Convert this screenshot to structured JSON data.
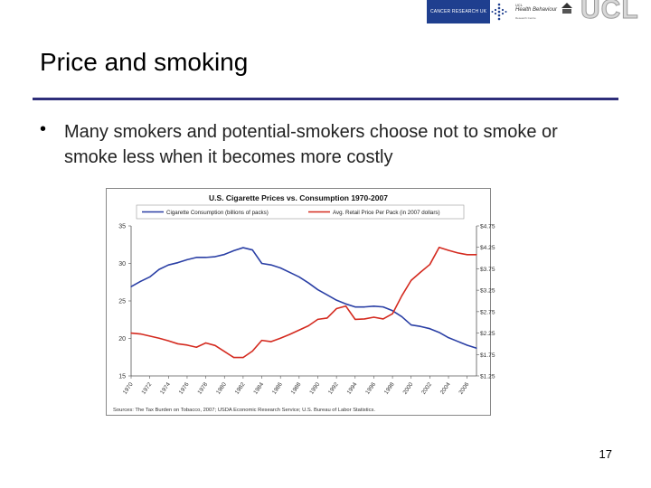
{
  "header": {
    "logo_cancer_research": "CANCER RESEARCH UK",
    "logo_ac_line1": "UCL",
    "logo_ac_line2": "Health Behaviour",
    "logo_ac_line3": "Research Centre",
    "logo_ucl": "UCL"
  },
  "slide": {
    "title": "Price and smoking",
    "bullet_marker": "•",
    "bullet_text": "Many smokers and potential-smokers choose not to smoke or smoke less when it becomes more costly",
    "page_number": "17"
  },
  "colors": {
    "consumption": "#2a3fa5",
    "price": "#d42a1f",
    "rule": "#2e2e7a",
    "chart_border": "#888888"
  },
  "chart_data": {
    "type": "line",
    "title": "U.S. Cigarette Prices vs. Consumption 1970-2007",
    "source": "Sources: The Tax Burden on Tobacco, 2007; USDA Economic Research Service; U.S. Bureau of Labor Statistics.",
    "x": [
      1970,
      1971,
      1972,
      1973,
      1974,
      1975,
      1976,
      1977,
      1978,
      1979,
      1980,
      1981,
      1982,
      1983,
      1984,
      1985,
      1986,
      1987,
      1988,
      1989,
      1990,
      1991,
      1992,
      1993,
      1994,
      1995,
      1996,
      1997,
      1998,
      1999,
      2000,
      2001,
      2002,
      2003,
      2004,
      2005,
      2006,
      2007
    ],
    "x_tick_labels": [
      "1970",
      "1972",
      "1974",
      "1976",
      "1978",
      "1980",
      "1982",
      "1984",
      "1986",
      "1988",
      "1990",
      "1992",
      "1994",
      "1996",
      "1998",
      "2000",
      "2002",
      "2004",
      "2006"
    ],
    "y_left": {
      "ylim": [
        15,
        35
      ],
      "ticks": [
        "15",
        "20",
        "25",
        "30",
        "35"
      ]
    },
    "y_right": {
      "ylim": [
        1.25,
        4.75
      ],
      "ticks": [
        "$1.25",
        "$1.75",
        "$2.25",
        "$2.75",
        "$3.25",
        "$3.75",
        "$4.25",
        "$4.75"
      ]
    },
    "legend_position": "top",
    "grid": false,
    "series": [
      {
        "name": "Cigarette Consumption (billions of packs)",
        "axis": "left",
        "values": [
          26.9,
          27.6,
          28.2,
          29.2,
          29.8,
          30.1,
          30.5,
          30.8,
          30.8,
          30.9,
          31.2,
          31.7,
          32.1,
          31.8,
          30.0,
          29.8,
          29.4,
          28.8,
          28.2,
          27.4,
          26.5,
          25.8,
          25.1,
          24.6,
          24.2,
          24.2,
          24.3,
          24.2,
          23.7,
          22.9,
          21.8,
          21.6,
          21.3,
          20.8,
          20.1,
          19.6,
          19.1,
          18.7
        ]
      },
      {
        "name": "Avg. Retail Price Per Pack (in 2007 dollars)",
        "axis": "right",
        "values": [
          2.25,
          2.23,
          2.18,
          2.13,
          2.07,
          2.0,
          1.97,
          1.92,
          2.02,
          1.96,
          1.82,
          1.68,
          1.68,
          1.83,
          2.08,
          2.05,
          2.13,
          2.22,
          2.32,
          2.42,
          2.57,
          2.6,
          2.82,
          2.88,
          2.57,
          2.58,
          2.62,
          2.58,
          2.7,
          3.12,
          3.48,
          3.67,
          3.85,
          4.25,
          4.18,
          4.12,
          4.08,
          4.08
        ]
      }
    ]
  }
}
